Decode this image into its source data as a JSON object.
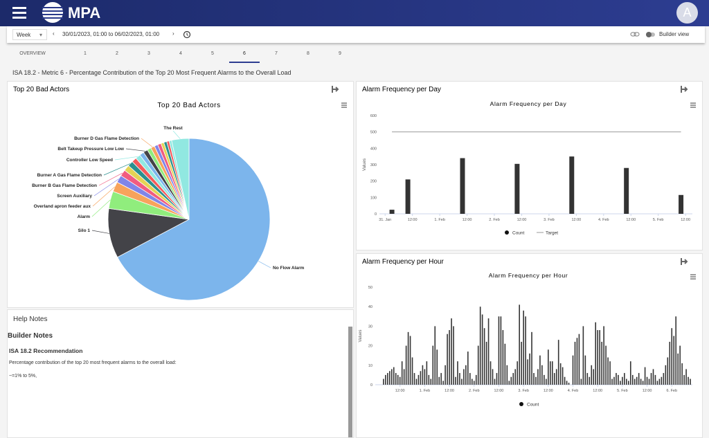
{
  "header": {
    "logo": "MPA",
    "avatar": "A"
  },
  "toolbar": {
    "period": "Week",
    "range": "30/01/2023, 01:00 to 06/02/2023, 01:00",
    "builder": "Builder view"
  },
  "tabs": [
    "OVERVIEW",
    "1",
    "2",
    "3",
    "4",
    "5",
    "6",
    "7",
    "8",
    "9"
  ],
  "active_tab": 6,
  "page_title": "ISA 18.2 - Metric 6 - Percentage Contribution of the Top 20 Most Frequent Alarms to the Overall Load",
  "chart_data": [
    {
      "type": "pie",
      "panel_title": "Top 20 Bad Actors",
      "title": "Top 20 Bad Actors",
      "categories": [
        "No Flow Alarm",
        "Silo 1",
        "Alarm",
        "Overland apron feeder aux",
        "Screen Auxiliary",
        "Burner B Gas Flame Detection",
        null,
        "Burner A Gas Flame Detection",
        null,
        "Controller Low Speed",
        null,
        "Belt Takeup Pressure Low Low",
        null,
        "Burner D Gas Flame Detection",
        null,
        null,
        null,
        null,
        null,
        null,
        "The Rest"
      ],
      "values": [
        68,
        10,
        3.5,
        2,
        1.5,
        1.3,
        1.2,
        1.1,
        1,
        1,
        0.9,
        0.9,
        0.8,
        0.8,
        0.7,
        0.7,
        0.6,
        0.6,
        0.5,
        0.5,
        3.5
      ],
      "colors": [
        "#7cb5ec",
        "#434348",
        "#90ed7d",
        "#f7a35c",
        "#8085e9",
        "#f15c80",
        "#e4d354",
        "#2b908f",
        "#f45b5b",
        "#91e8e1",
        "#7cb5ec",
        "#434348",
        "#90ed7d",
        "#f7a35c",
        "#8085e9",
        "#f15c80",
        "#e4d354",
        "#2b908f",
        "#f45b5b",
        "#91e8e1",
        "#91e8e1"
      ]
    },
    {
      "type": "bar",
      "panel_title": "Alarm Frequency per Day",
      "title": "Alarm Frequency per Day",
      "y_label": "Values",
      "x": [
        3,
        10,
        34,
        58,
        82,
        106,
        130
      ],
      "xlim": [
        -2.5,
        135
      ],
      "xticks": [
        {
          "value": 0,
          "label": "31. Jan"
        },
        {
          "value": 12,
          "label": "12:00"
        },
        {
          "value": 24,
          "label": "1. Feb"
        },
        {
          "value": 36,
          "label": "12:00"
        },
        {
          "value": 48,
          "label": "2. Feb"
        },
        {
          "value": 60,
          "label": "12:00"
        },
        {
          "value": 72,
          "label": "3. Feb"
        },
        {
          "value": 84,
          "label": "12:00"
        },
        {
          "value": 96,
          "label": "4. Feb"
        },
        {
          "value": 108,
          "label": "12:00"
        },
        {
          "value": 120,
          "label": "5. Feb"
        },
        {
          "value": 132,
          "label": "12:00"
        }
      ],
      "ylim": [
        0,
        600
      ],
      "yticks": [
        0,
        100,
        200,
        300,
        400,
        500,
        600
      ],
      "grid": false,
      "series": [
        {
          "name": "Count",
          "color": "#333333",
          "values": [
            25,
            210,
            340,
            305,
            350,
            280,
            115
          ]
        },
        {
          "name": "Target",
          "color": "#999999",
          "type": "line",
          "values": [
            500,
            500,
            500,
            500,
            500,
            500,
            500
          ]
        }
      ]
    },
    {
      "type": "bar",
      "panel_title": "Alarm Frequency per Hour",
      "title": "Alarm Frequency per Hour",
      "y_label": "Values",
      "x": [
        4,
        5,
        6,
        7,
        8,
        9,
        10,
        11,
        12,
        13,
        14,
        15,
        16,
        17,
        18,
        19,
        20,
        21,
        22,
        23,
        24,
        25,
        26,
        27,
        28,
        29,
        30,
        31,
        32,
        33,
        34,
        35,
        36,
        37,
        38,
        39,
        40,
        41,
        42,
        43,
        44,
        45,
        46,
        47,
        48,
        49,
        50,
        51,
        52,
        53,
        54,
        55,
        56,
        57,
        58,
        59,
        60,
        61,
        62,
        63,
        64,
        65,
        66,
        67,
        68,
        69,
        70,
        71,
        72,
        73,
        74,
        75,
        76,
        77,
        78,
        79,
        80,
        81,
        82,
        83,
        84,
        85,
        86,
        87,
        88,
        89,
        90,
        91,
        92,
        93,
        94,
        95,
        96,
        97,
        98,
        99,
        100,
        101,
        102,
        103,
        104,
        105,
        106,
        107,
        108,
        109,
        110,
        111,
        112,
        113,
        114,
        115,
        116,
        117,
        118,
        119,
        120,
        121,
        122,
        123,
        124,
        125,
        126,
        127,
        128,
        129,
        130,
        131,
        132,
        133,
        134,
        135,
        136,
        137,
        138,
        139,
        140,
        141,
        142,
        143,
        144,
        145,
        146,
        147,
        148,
        149,
        150,
        151,
        152,
        153
      ],
      "xlim": [
        0,
        154
      ],
      "xticks": [
        {
          "value": 12,
          "label": "12:00"
        },
        {
          "value": 24,
          "label": "1. Feb"
        },
        {
          "value": 36,
          "label": "12:00"
        },
        {
          "value": 48,
          "label": "2. Feb"
        },
        {
          "value": 60,
          "label": "12:00"
        },
        {
          "value": 72,
          "label": "3. Feb"
        },
        {
          "value": 84,
          "label": "12:00"
        },
        {
          "value": 96,
          "label": "4. Feb"
        },
        {
          "value": 108,
          "label": "12:00"
        },
        {
          "value": 120,
          "label": "5. Feb"
        },
        {
          "value": 132,
          "label": "12:00"
        },
        {
          "value": 144,
          "label": "6. Feb"
        }
      ],
      "ylim": [
        0,
        50
      ],
      "yticks": [
        0,
        10,
        20,
        30,
        40,
        50
      ],
      "grid": false,
      "series": [
        {
          "name": "Count",
          "color": "#333333",
          "values": [
            3,
            5,
            6,
            7,
            8,
            9,
            6,
            5,
            4,
            12,
            8,
            20,
            27,
            25,
            14,
            6,
            3,
            5,
            7,
            10,
            8,
            12,
            5,
            3,
            20,
            30,
            18,
            4,
            6,
            2,
            10,
            26,
            28,
            34,
            30,
            4,
            12,
            6,
            3,
            8,
            10,
            17,
            6,
            3,
            2,
            5,
            20,
            40,
            36,
            29,
            22,
            34,
            12,
            8,
            3,
            6,
            35,
            35,
            28,
            21,
            10,
            2,
            4,
            6,
            8,
            12,
            41,
            22,
            38,
            35,
            13,
            16,
            27,
            6,
            4,
            8,
            15,
            10,
            5,
            3,
            18,
            12,
            12,
            6,
            8,
            23,
            11,
            9,
            4,
            2,
            1,
            0,
            15,
            22,
            24,
            26,
            3,
            30,
            15,
            6,
            4,
            10,
            8,
            32,
            28,
            28,
            22,
            30,
            20,
            14,
            12,
            3,
            4,
            6,
            5,
            2,
            4,
            6,
            3,
            2,
            12,
            5,
            3,
            4,
            6,
            3,
            2,
            9,
            4,
            3,
            6,
            8,
            5,
            2,
            3,
            4,
            6,
            10,
            14,
            22,
            29,
            25,
            35,
            16,
            20,
            11,
            5,
            8,
            4,
            3
          ]
        }
      ]
    }
  ],
  "help": {
    "title": "Help Notes",
    "heading": "Builder Notes",
    "subheading": "ISA 18.2 Recommendation",
    "text": "Percentage contribution of the top 20 most frequent alarms to the overall load:",
    "note": "~=1% to 5%,"
  }
}
